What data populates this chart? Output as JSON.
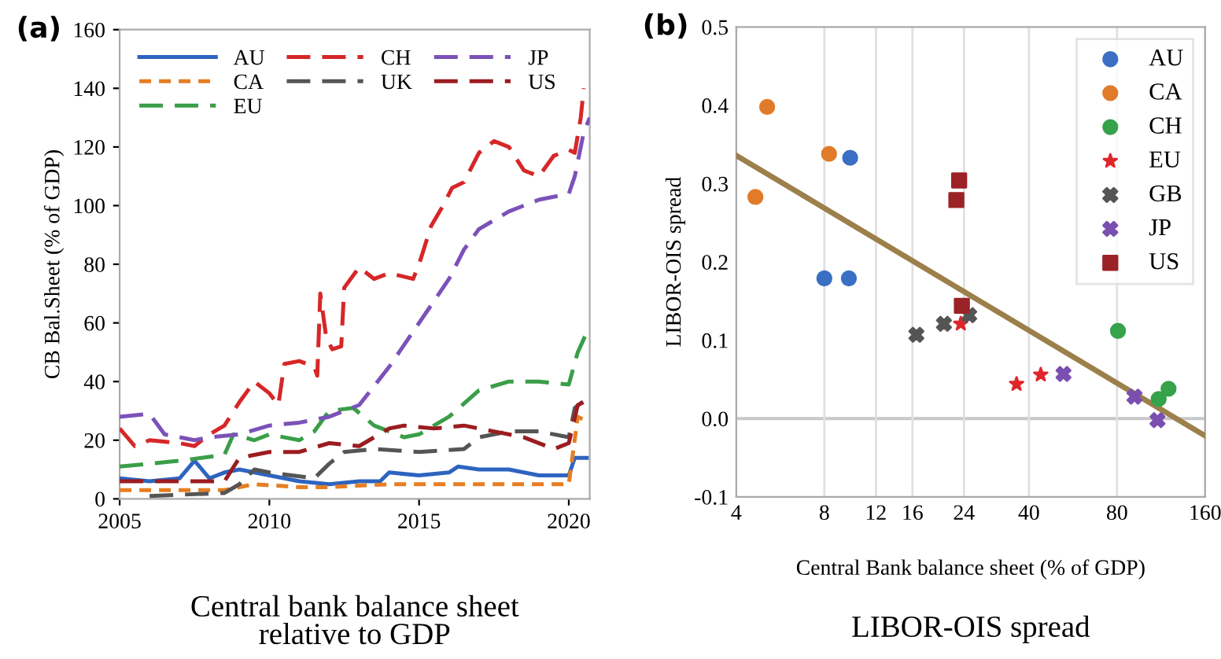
{
  "chart_data": [
    {
      "type": "line",
      "title": "Central bank balance sheet\nrelative to GDP",
      "ylabel": "CB Bal.Sheet (% of GDP)",
      "annotations": [
        "(a)"
      ],
      "xlim": [
        2005,
        2020.7
      ],
      "xticks": [
        2005,
        2010,
        2015,
        2020
      ],
      "ylim": [
        0,
        160
      ],
      "yticks": [
        0,
        20,
        40,
        60,
        80,
        100,
        120,
        140,
        160
      ],
      "grid": false,
      "legend": "top left",
      "series": [
        {
          "name": "AU",
          "color": "#2e64c0",
          "line_style": "solid",
          "x": [
            2005,
            2006,
            2007,
            2007.5,
            2008,
            2008.5,
            2009,
            2010,
            2011,
            2012,
            2013,
            2013.7,
            2014,
            2015,
            2016,
            2016.3,
            2017,
            2018,
            2019,
            2020,
            2020.2,
            2020.6
          ],
          "values": [
            7,
            6,
            7,
            13,
            7,
            9,
            10,
            8,
            6,
            5,
            6,
            6,
            9,
            8,
            9,
            11,
            10,
            10,
            8,
            8,
            14,
            14
          ]
        },
        {
          "name": "CA",
          "color": "#e67e22",
          "line_style": "dotted",
          "x": [
            2005,
            2008.5,
            2009.5,
            2011,
            2012,
            2014,
            2016,
            2018,
            2020,
            2020.3,
            2020.5
          ],
          "values": [
            3,
            3,
            5,
            4,
            4,
            5,
            5,
            5,
            5,
            28,
            27
          ]
        },
        {
          "name": "EU",
          "color": "#3a9e48",
          "line_style": "dashed",
          "x": [
            2005,
            2007,
            2008.5,
            2008.8,
            2009.5,
            2010,
            2011,
            2011.5,
            2012,
            2012.8,
            2013.5,
            2014.5,
            2015,
            2016,
            2017,
            2018,
            2019,
            2020,
            2020.3,
            2020.7
          ],
          "values": [
            11,
            13,
            15,
            22,
            20,
            22,
            20,
            23,
            30,
            31,
            25,
            21,
            22,
            28,
            37,
            40,
            40,
            39,
            50,
            59
          ]
        },
        {
          "name": "CH",
          "color": "#d62728",
          "line_style": "dashed",
          "x": [
            2005,
            2005.5,
            2006,
            2007,
            2007.5,
            2008,
            2008.5,
            2009,
            2009.5,
            2010,
            2010.3,
            2010.5,
            2011,
            2011.5,
            2011.6,
            2011.7,
            2011.9,
            2012.1,
            2012.4,
            2012.5,
            2013,
            2013.5,
            2014,
            2014.8,
            2015,
            2015.4,
            2015.8,
            2016.1,
            2016.5,
            2017,
            2017.5,
            2018,
            2018.5,
            2019,
            2019.5,
            2020,
            2020.2,
            2020.4,
            2020.5
          ],
          "values": [
            24,
            18,
            20,
            19,
            18,
            22,
            25,
            33,
            40,
            36,
            32,
            46,
            47,
            45,
            42,
            70,
            55,
            51,
            52,
            72,
            79,
            75,
            77,
            75,
            80,
            93,
            100,
            106,
            108,
            118,
            122,
            120,
            112,
            110,
            117,
            119,
            118,
            130,
            140
          ]
        },
        {
          "name": "UK",
          "color": "#555555",
          "line_style": "dashed",
          "x": [
            2006,
            2008.5,
            2009,
            2009.5,
            2010,
            2011.5,
            2012,
            2012.5,
            2013.5,
            2015,
            2016.5,
            2017,
            2018,
            2019,
            2020,
            2020.2,
            2020.7
          ],
          "values": [
            1,
            2,
            5,
            10,
            9,
            7,
            12,
            16,
            17,
            16,
            17,
            21,
            23,
            23,
            21,
            31,
            35
          ]
        },
        {
          "name": "JP",
          "color": "#7b52b8",
          "line_style": "dashed",
          "x": [
            2005,
            2006,
            2006.5,
            2007.5,
            2008,
            2009,
            2010,
            2011,
            2012,
            2013,
            2014,
            2015,
            2016,
            2016.5,
            2017,
            2018,
            2019,
            2020,
            2020.2,
            2020.5,
            2020.7
          ],
          "values": [
            28,
            29,
            22,
            20,
            21,
            22,
            25,
            26,
            28,
            32,
            45,
            60,
            75,
            85,
            92,
            98,
            102,
            104,
            110,
            125,
            130
          ]
        },
        {
          "name": "US",
          "color": "#9b1c20",
          "line_style": "dashed",
          "x": [
            2005,
            2008.5,
            2009,
            2010,
            2011,
            2012,
            2013,
            2014,
            2014.5,
            2015.5,
            2016.5,
            2017.5,
            2018.5,
            2019.5,
            2020,
            2020.3,
            2020.7
          ],
          "values": [
            6,
            6,
            14,
            16,
            16,
            19,
            18,
            24,
            25,
            24,
            25,
            23,
            21,
            17,
            19,
            32,
            34
          ]
        }
      ]
    },
    {
      "type": "scatter",
      "title": "LIBOR-OIS spread",
      "xlabel": "Central Bank balance sheet (% of GDP)",
      "ylabel": "LIBOR-OIS spread",
      "annotations": [
        "(b)"
      ],
      "log": "x",
      "xlim": [
        4,
        160
      ],
      "xticks": [
        4,
        8,
        12,
        16,
        24,
        40,
        80,
        160
      ],
      "ylim": [
        -0.1,
        0.5
      ],
      "yticks": [
        {
          "value": -0.1,
          "label": "-0.1"
        },
        {
          "value": 0,
          "label": "0.0"
        },
        0.1,
        0.2,
        0.3,
        0.4,
        0.5
      ],
      "grid": "x",
      "legend": "top right",
      "ref_lines": [
        {
          "axis": "y",
          "value": 0,
          "color": "#c8c8c8"
        }
      ],
      "series": [
        {
          "name": "AU",
          "color": "#3a6fc4",
          "marker": "circle",
          "x": [
            8.0,
            9.7,
            9.8
          ],
          "values": [
            0.179,
            0.179,
            0.333
          ]
        },
        {
          "name": "CA",
          "color": "#e07b2a",
          "marker": "circle",
          "x": [
            5.1,
            4.65,
            8.3
          ],
          "values": [
            0.398,
            0.283,
            0.338
          ]
        },
        {
          "name": "CH",
          "color": "#36a24a",
          "marker": "circle",
          "x": [
            80.6,
            111,
            120
          ],
          "values": [
            0.112,
            0.025,
            0.038
          ]
        },
        {
          "name": "EU",
          "color": "#e0262a",
          "marker": "star",
          "x": [
            23.4,
            36.3,
            43.9
          ],
          "values": [
            0.121,
            0.044,
            0.056
          ]
        },
        {
          "name": "GB",
          "color": "#555555",
          "marker": "cross",
          "x": [
            16.5,
            20.5,
            25.0
          ],
          "values": [
            0.107,
            0.121,
            0.132
          ]
        },
        {
          "name": "JP",
          "color": "#7a4fb0",
          "marker": "cross",
          "x": [
            52.5,
            91.8,
            110
          ],
          "values": [
            0.057,
            0.028,
            -0.002
          ]
        },
        {
          "name": "US",
          "color": "#9b2226",
          "marker": "square",
          "x": [
            23.1,
            22.6,
            23.6
          ],
          "values": [
            0.304,
            0.279,
            0.144
          ]
        },
        {
          "type": "line",
          "color": "#9c7f4a",
          "marker": "none",
          "x": [
            4,
            160
          ],
          "values": [
            0.336,
            -0.022
          ]
        }
      ]
    }
  ]
}
